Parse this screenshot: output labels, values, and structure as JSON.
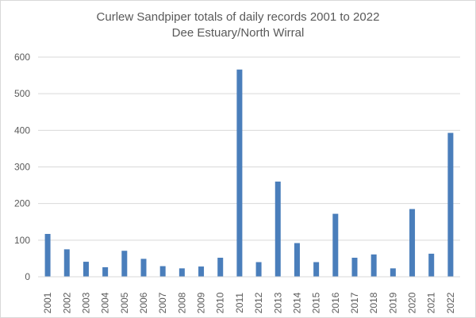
{
  "chart_data": {
    "type": "bar",
    "title": [
      "Curlew Sandpiper totals of daily records 2001 to 2022",
      "Dee Estuary/North Wirral"
    ],
    "xlabel": "",
    "ylabel": "",
    "ylim": [
      0,
      600
    ],
    "yticks": [
      "0",
      "100",
      "200",
      "300",
      "400",
      "500",
      "600"
    ],
    "grid": true,
    "legend": "none",
    "bar_color": "#4a7ebb",
    "categories": [
      "2001",
      "2002",
      "2003",
      "2004",
      "2005",
      "2006",
      "2007",
      "2008",
      "2009",
      "2010",
      "2011",
      "2012",
      "2013",
      "2014",
      "2015",
      "2016",
      "2017",
      "2018",
      "2019",
      "2020",
      "2021",
      "2022"
    ],
    "values": [
      117,
      75,
      41,
      26,
      71,
      49,
      29,
      23,
      28,
      52,
      566,
      40,
      260,
      92,
      40,
      172,
      52,
      61,
      23,
      185,
      63,
      393
    ]
  }
}
